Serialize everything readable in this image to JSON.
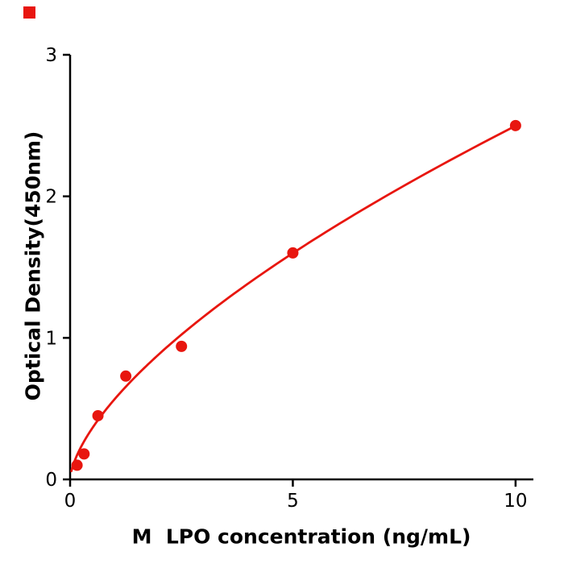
{
  "figure": {
    "background": "#ffffff",
    "corner_marker_color": "#e8160f"
  },
  "chart_data": {
    "type": "scatter",
    "title": "",
    "xlabel": "M  LPO concentration (ng/mL)",
    "ylabel": "Optical Density(450nm)",
    "x": [
      0.156,
      0.313,
      0.625,
      1.25,
      2.5,
      5,
      10
    ],
    "y": [
      0.1,
      0.18,
      0.45,
      0.73,
      0.94,
      1.6,
      2.5
    ],
    "xlim": [
      0,
      10.4
    ],
    "ylim": [
      0,
      3
    ],
    "xticks": [
      0,
      5,
      10
    ],
    "yticks": [
      0,
      1,
      2,
      3
    ],
    "xtick_labels": [
      "0",
      "5",
      "10"
    ],
    "ytick_labels": [
      "0",
      "1",
      "2",
      "3"
    ],
    "point_color": "#e8160f",
    "curve_color": "#e8160f",
    "axis_color": "#000000",
    "curve_fit": {
      "type": "power",
      "a": 0.567,
      "b": 0.644,
      "x_start": 0.03,
      "x_end": 10
    },
    "grid": false,
    "legend": null
  }
}
